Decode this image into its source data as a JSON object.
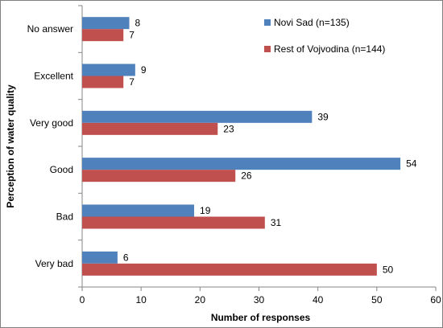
{
  "chart_data": {
    "type": "bar",
    "orientation": "horizontal",
    "categories": [
      "No answer",
      "Excellent",
      "Very good",
      "Good",
      "Bad",
      "Very bad"
    ],
    "series": [
      {
        "name": "Novi Sad (n=135)",
        "color": "#4F81BD",
        "values": [
          8,
          9,
          39,
          54,
          19,
          6
        ]
      },
      {
        "name": "Rest of Vojvodina (n=144)",
        "color": "#C0504D",
        "values": [
          7,
          7,
          23,
          26,
          31,
          50
        ]
      }
    ],
    "xlabel": "Number of responses",
    "ylabel": "Perception of water quality",
    "xlim": [
      0,
      60
    ],
    "xticks": [
      0,
      10,
      20,
      30,
      40,
      50,
      60
    ],
    "grid": false,
    "legend_position": "top-right"
  }
}
